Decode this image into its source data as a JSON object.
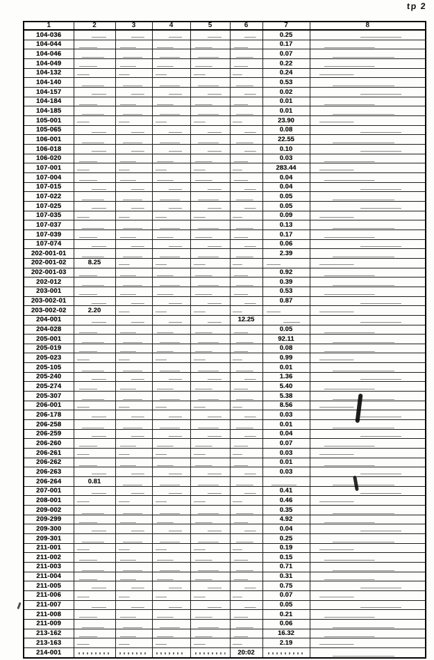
{
  "page": {
    "corner_label": "tp 2"
  },
  "table": {
    "headers": [
      "1",
      "2",
      "3",
      "4",
      "5",
      "6",
      "7",
      "8"
    ],
    "rows": [
      [
        "104-036",
        "",
        "",
        "",
        "",
        "",
        "0.25",
        ""
      ],
      [
        "104-044",
        "",
        "",
        "",
        "",
        "",
        "0.17",
        ""
      ],
      [
        "104-046",
        "",
        "",
        "",
        "",
        "",
        "0.07",
        ""
      ],
      [
        "104-049",
        "",
        "",
        "",
        "",
        "",
        "0.22",
        ""
      ],
      [
        "104-132",
        "",
        "",
        "",
        "",
        "",
        "0.24",
        ""
      ],
      [
        "104-140",
        "",
        "",
        "",
        "",
        "",
        "0.53",
        ""
      ],
      [
        "104-157",
        "",
        "",
        "",
        "",
        "",
        "0.02",
        ""
      ],
      [
        "104-184",
        "",
        "",
        "",
        "",
        "",
        "0.01",
        ""
      ],
      [
        "104-185",
        "",
        "",
        "",
        "",
        "",
        "0.01",
        ""
      ],
      [
        "105-001",
        "",
        "",
        "",
        "",
        "",
        "23.90",
        ""
      ],
      [
        "105-065",
        "",
        "",
        "",
        "",
        "",
        "0.08",
        ""
      ],
      [
        "106-001",
        "",
        "",
        "",
        "",
        "",
        "22.55",
        ""
      ],
      [
        "106-018",
        "",
        "",
        "",
        "",
        "",
        "0.10",
        ""
      ],
      [
        "106-020",
        "",
        "",
        "",
        "",
        "",
        "0.03",
        ""
      ],
      [
        "107-001",
        "",
        "",
        "",
        "",
        "",
        "283.44",
        ""
      ],
      [
        "107-004",
        "",
        "",
        "",
        "",
        "",
        "0.04",
        ""
      ],
      [
        "107-015",
        "",
        "",
        "",
        "",
        "",
        "0.04",
        ""
      ],
      [
        "107-022",
        "",
        "",
        "",
        "",
        "",
        "0.05",
        ""
      ],
      [
        "107-025",
        "",
        "",
        "",
        "",
        "",
        "0.05",
        ""
      ],
      [
        "107-035",
        "",
        "",
        "",
        "",
        "",
        "0.09",
        ""
      ],
      [
        "107-037",
        "",
        "",
        "",
        "",
        "",
        "0.13",
        ""
      ],
      [
        "107-039",
        "",
        "",
        "",
        "",
        "",
        "0.17",
        ""
      ],
      [
        "107-074",
        "",
        "",
        "",
        "",
        "",
        "0.06",
        ""
      ],
      [
        "202-001-01",
        "",
        "",
        "",
        "",
        "",
        "2.39",
        ""
      ],
      [
        "202-001-02",
        "8.25",
        "",
        "",
        "",
        "",
        "",
        ""
      ],
      [
        "202-001-03",
        "",
        "",
        "",
        "",
        "",
        "0.92",
        ""
      ],
      [
        "202-012",
        "",
        "",
        "",
        "",
        "",
        "0.39",
        ""
      ],
      [
        "203-001",
        "",
        "",
        "",
        "",
        "",
        "0.53",
        ""
      ],
      [
        "203-002-01",
        "",
        "",
        "",
        "",
        "",
        "0.87",
        ""
      ],
      [
        "203-002-02",
        "2.20",
        "",
        "",
        "",
        "",
        "",
        ""
      ],
      [
        "204-001",
        "",
        "",
        "",
        "",
        "12.25",
        "",
        ""
      ],
      [
        "204-028",
        "",
        "",
        "",
        "",
        "",
        "0.05",
        ""
      ],
      [
        "205-001",
        "",
        "",
        "",
        "",
        "",
        "92.11",
        ""
      ],
      [
        "205-019",
        "",
        "",
        "",
        "",
        "",
        "0.08",
        ""
      ],
      [
        "205-023",
        "",
        "",
        "",
        "",
        "",
        "0.99",
        ""
      ],
      [
        "205-105",
        "",
        "",
        "",
        "",
        "",
        "0.01",
        ""
      ],
      [
        "205-240",
        "",
        "",
        "",
        "",
        "",
        "1.36",
        ""
      ],
      [
        "205-274",
        "",
        "",
        "",
        "",
        "",
        "5.40",
        ""
      ],
      [
        "205-307",
        "",
        "",
        "",
        "",
        "",
        "5.38",
        ""
      ],
      [
        "206-001",
        "",
        "",
        "",
        "",
        "",
        "8.56",
        ""
      ],
      [
        "206-178",
        "",
        "",
        "",
        "",
        "",
        "0.03",
        ""
      ],
      [
        "206-258",
        "",
        "",
        "",
        "",
        "",
        "0.01",
        ""
      ],
      [
        "206-259",
        "",
        "",
        "",
        "",
        "",
        "0.04",
        ""
      ],
      [
        "206-260",
        "",
        "",
        "",
        "",
        "",
        "0.07",
        ""
      ],
      [
        "206-261",
        "",
        "",
        "",
        "",
        "",
        "0.03",
        ""
      ],
      [
        "206-262",
        "",
        "",
        "",
        "",
        "",
        "0.01",
        ""
      ],
      [
        "206-263",
        "",
        "",
        "",
        "",
        "",
        "0.03",
        ""
      ],
      [
        "206-264",
        "0.81",
        "",
        "",
        "",
        "",
        "",
        ""
      ],
      [
        "207-001",
        "",
        "",
        "",
        "",
        "",
        "0.41",
        ""
      ],
      [
        "208-001",
        "",
        "",
        "",
        "",
        "",
        "0.46",
        ""
      ],
      [
        "209-002",
        "",
        "",
        "",
        "",
        "",
        "0.35",
        ""
      ],
      [
        "209-299",
        "",
        "",
        "",
        "",
        "",
        "4.92",
        ""
      ],
      [
        "209-300",
        "",
        "",
        "",
        "",
        "",
        "0.04",
        ""
      ],
      [
        "209-301",
        "",
        "",
        "",
        "",
        "",
        "0.25",
        ""
      ],
      [
        "211-001",
        "",
        "",
        "",
        "",
        "",
        "0.19",
        ""
      ],
      [
        "211-002",
        "",
        "",
        "",
        "",
        "",
        "0.15",
        ""
      ],
      [
        "211-003",
        "",
        "",
        "",
        "",
        "",
        "0.71",
        ""
      ],
      [
        "211-004",
        "",
        "",
        "",
        "",
        "",
        "0.31",
        ""
      ],
      [
        "211-005",
        "",
        "",
        "",
        "",
        "",
        "0.75",
        ""
      ],
      [
        "211-006",
        "",
        "",
        "",
        "",
        "",
        "0.07",
        ""
      ],
      [
        "211-007",
        "",
        "",
        "",
        "",
        "",
        "0.05",
        ""
      ],
      [
        "211-008",
        "",
        "",
        "",
        "",
        "",
        "0.21",
        ""
      ],
      [
        "211-009",
        "",
        "",
        "",
        "",
        "",
        "0.06",
        ""
      ],
      [
        "213-162",
        "",
        "",
        "",
        "",
        "",
        "16.32",
        ""
      ],
      [
        "213-163",
        "",
        "",
        "",
        "",
        "",
        "2.19",
        ""
      ],
      [
        "214-001",
        "",
        "",
        "",
        "",
        "20:02",
        "",
        ""
      ]
    ],
    "smudged_row_id": "214-001"
  }
}
